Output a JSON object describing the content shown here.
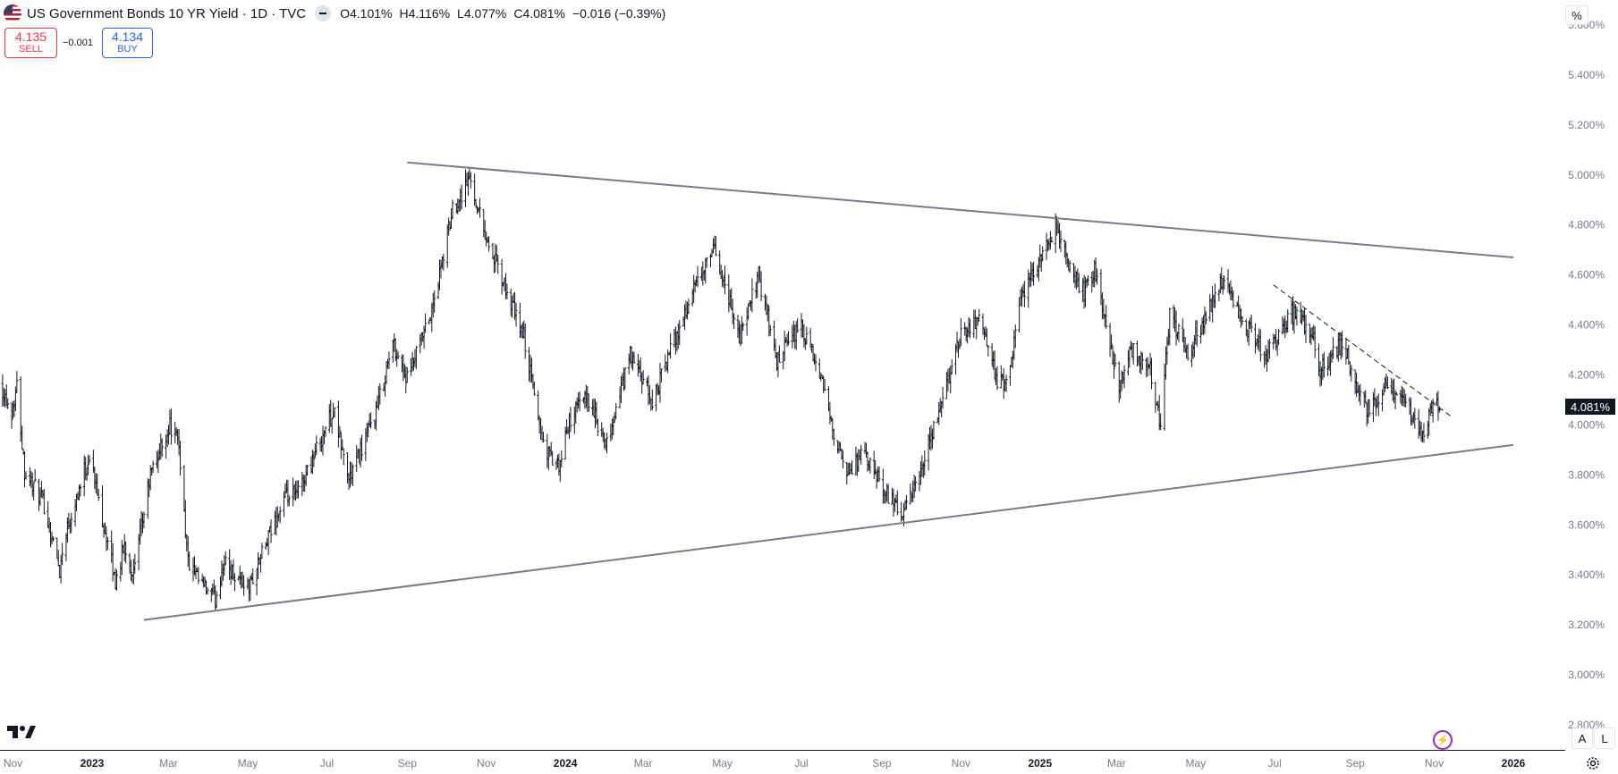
{
  "header": {
    "title": "US Government Bonds 10 YR Yield · 1D · TVC",
    "ohlc": [
      {
        "k": "O",
        "v": "4.101%"
      },
      {
        "k": "H",
        "v": "4.116%"
      },
      {
        "k": "L",
        "v": "4.077%"
      },
      {
        "k": "C",
        "v": "4.081%"
      }
    ],
    "change": "−0.016 (−0.39%)"
  },
  "trade": {
    "sell_price": "4.135",
    "sell_label": "SELL",
    "buy_price": "4.134",
    "buy_label": "BUY",
    "spread": "−0.001"
  },
  "scale_mode_label": "%",
  "last_price": "4.081%",
  "axis_buttons": {
    "auto": "A",
    "log": "L"
  },
  "colors": {
    "price_bars": "#131722",
    "trendline": "#787b86",
    "sell": "#f23645",
    "buy": "#2962ff",
    "alert": "#9c27b0"
  },
  "icons": [
    "us-flag-icon",
    "minimize-icon",
    "tradingview-logo-icon",
    "lightning-icon",
    "gear-icon"
  ],
  "chart_data": {
    "type": "ohlc",
    "title": "",
    "xlabel": "",
    "ylabel": "",
    "ylim": [
      2.7,
      5.7
    ],
    "xlim": [
      "2022-10-22",
      "2026-02-10"
    ],
    "y_ticks": [
      "2.800%",
      "3.000%",
      "3.200%",
      "3.400%",
      "3.600%",
      "3.800%",
      "4.000%",
      "4.200%",
      "4.400%",
      "4.600%",
      "4.800%",
      "5.000%",
      "5.200%",
      "5.400%",
      "5.600%"
    ],
    "x_ticks": [
      {
        "label": "Nov",
        "date": "2022-11-01"
      },
      {
        "label": "2023",
        "date": "2023-01-01"
      },
      {
        "label": "Mar",
        "date": "2023-03-01"
      },
      {
        "label": "May",
        "date": "2023-05-01"
      },
      {
        "label": "Jul",
        "date": "2023-07-01"
      },
      {
        "label": "Sep",
        "date": "2023-09-01"
      },
      {
        "label": "Nov",
        "date": "2023-11-01"
      },
      {
        "label": "2024",
        "date": "2024-01-01"
      },
      {
        "label": "Mar",
        "date": "2024-03-01"
      },
      {
        "label": "May",
        "date": "2024-05-01"
      },
      {
        "label": "Jul",
        "date": "2024-07-01"
      },
      {
        "label": "Sep",
        "date": "2024-09-01"
      },
      {
        "label": "Nov",
        "date": "2024-11-01"
      },
      {
        "label": "2025",
        "date": "2025-01-01"
      },
      {
        "label": "Mar",
        "date": "2025-03-01"
      },
      {
        "label": "May",
        "date": "2025-05-01"
      },
      {
        "label": "Jul",
        "date": "2025-07-01"
      },
      {
        "label": "Sep",
        "date": "2025-09-01"
      },
      {
        "label": "Nov",
        "date": "2025-11-01"
      },
      {
        "label": "2026",
        "date": "2026-01-01"
      }
    ],
    "close_path": [
      [
        "2022-10-22",
        4.17
      ],
      [
        "2022-10-31",
        4.05
      ],
      [
        "2022-11-04",
        4.16
      ],
      [
        "2022-11-10",
        3.82
      ],
      [
        "2022-11-25",
        3.68
      ],
      [
        "2022-12-07",
        3.42
      ],
      [
        "2022-12-12",
        3.58
      ],
      [
        "2022-12-30",
        3.88
      ],
      [
        "2023-01-12",
        3.55
      ],
      [
        "2023-01-19",
        3.37
      ],
      [
        "2023-01-26",
        3.52
      ],
      [
        "2023-02-02",
        3.4
      ],
      [
        "2023-02-15",
        3.8
      ],
      [
        "2023-03-02",
        4.0
      ],
      [
        "2023-03-09",
        3.92
      ],
      [
        "2023-03-16",
        3.45
      ],
      [
        "2023-03-23",
        3.38
      ],
      [
        "2023-04-06",
        3.3
      ],
      [
        "2023-04-12",
        3.45
      ],
      [
        "2023-05-02",
        3.35
      ],
      [
        "2023-05-15",
        3.52
      ],
      [
        "2023-05-29",
        3.7
      ],
      [
        "2023-06-08",
        3.72
      ],
      [
        "2023-07-06",
        4.06
      ],
      [
        "2023-07-18",
        3.78
      ],
      [
        "2023-08-08",
        4.05
      ],
      [
        "2023-08-21",
        4.33
      ],
      [
        "2023-09-01",
        4.18
      ],
      [
        "2023-09-20",
        4.45
      ],
      [
        "2023-10-06",
        4.86
      ],
      [
        "2023-10-19",
        4.99
      ],
      [
        "2023-11-01",
        4.75
      ],
      [
        "2023-11-10",
        4.62
      ],
      [
        "2023-11-30",
        4.35
      ],
      [
        "2023-12-15",
        3.92
      ],
      [
        "2023-12-27",
        3.82
      ],
      [
        "2024-01-04",
        4.02
      ],
      [
        "2024-01-18",
        4.12
      ],
      [
        "2024-02-01",
        3.9
      ],
      [
        "2024-02-20",
        4.28
      ],
      [
        "2024-03-08",
        4.09
      ],
      [
        "2024-03-20",
        4.27
      ],
      [
        "2024-04-10",
        4.55
      ],
      [
        "2024-04-25",
        4.7
      ],
      [
        "2024-05-15",
        4.35
      ],
      [
        "2024-05-29",
        4.6
      ],
      [
        "2024-06-12",
        4.25
      ],
      [
        "2024-06-30",
        4.4
      ],
      [
        "2024-07-15",
        4.2
      ],
      [
        "2024-08-05",
        3.78
      ],
      [
        "2024-08-16",
        3.89
      ],
      [
        "2024-09-06",
        3.72
      ],
      [
        "2024-09-16",
        3.63
      ],
      [
        "2024-10-01",
        3.8
      ],
      [
        "2024-10-17",
        4.09
      ],
      [
        "2024-11-01",
        4.37
      ],
      [
        "2024-11-15",
        4.43
      ],
      [
        "2024-11-29",
        4.18
      ],
      [
        "2024-12-06",
        4.15
      ],
      [
        "2024-12-18",
        4.52
      ],
      [
        "2025-01-13",
        4.79
      ],
      [
        "2025-01-24",
        4.63
      ],
      [
        "2025-02-04",
        4.53
      ],
      [
        "2025-02-12",
        4.62
      ],
      [
        "2025-03-03",
        4.16
      ],
      [
        "2025-03-12",
        4.3
      ],
      [
        "2025-03-26",
        4.25
      ],
      [
        "2025-04-04",
        4.0
      ],
      [
        "2025-04-11",
        4.45
      ],
      [
        "2025-04-25",
        4.28
      ],
      [
        "2025-05-21",
        4.58
      ],
      [
        "2025-06-05",
        4.42
      ],
      [
        "2025-06-25",
        4.28
      ],
      [
        "2025-07-14",
        4.45
      ],
      [
        "2025-07-31",
        4.37
      ],
      [
        "2025-08-04",
        4.22
      ],
      [
        "2025-08-22",
        4.33
      ],
      [
        "2025-09-10",
        4.05
      ],
      [
        "2025-09-25",
        4.15
      ],
      [
        "2025-10-05",
        4.13
      ],
      [
        "2025-10-22",
        3.96
      ],
      [
        "2025-10-31",
        4.08
      ],
      [
        "2025-11-05",
        4.081
      ]
    ],
    "trendlines": [
      {
        "style": "solid",
        "from": [
          "2023-09-01",
          5.05
        ],
        "to": [
          "2026-01-01",
          4.67
        ]
      },
      {
        "style": "solid",
        "from": [
          "2023-02-10",
          3.22
        ],
        "to": [
          "2026-01-01",
          3.92
        ]
      },
      {
        "style": "dashed",
        "from": [
          "2025-06-30",
          4.56
        ],
        "to": [
          "2025-11-15",
          4.03
        ]
      }
    ],
    "grid": false,
    "legend": "none"
  }
}
